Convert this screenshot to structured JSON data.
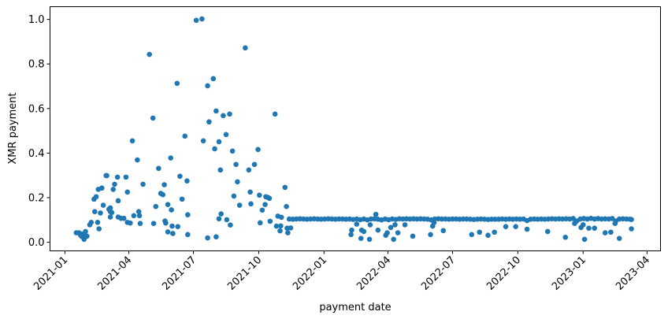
{
  "chart_data": {
    "type": "scatter",
    "title": "",
    "xlabel": "payment date",
    "ylabel": "XMR payment",
    "xlim": [
      "2020-12-11",
      "2023-04-20"
    ],
    "ylim": [
      -0.039,
      1.057
    ],
    "grid": false,
    "marker_color": "#1f77b4",
    "x_ticks": [
      "2021-01",
      "2021-04",
      "2021-07",
      "2021-10",
      "2022-01",
      "2022-04",
      "2022-07",
      "2022-10",
      "2023-01",
      "2023-04"
    ],
    "y_ticks": [
      "0.0",
      "0.2",
      "0.4",
      "0.6",
      "0.8",
      "1.0"
    ],
    "points": [
      [
        "2021-01-17",
        0.042
      ],
      [
        "2021-01-21",
        0.042
      ],
      [
        "2021-01-25",
        0.036
      ],
      [
        "2021-01-28",
        0.036
      ],
      [
        "2021-01-30",
        0.048
      ],
      [
        "2021-02-01",
        0.027
      ],
      [
        "2021-01-28",
        0.013
      ],
      [
        "2021-01-25",
        0.025
      ],
      [
        "2021-01-23",
        0.031
      ],
      [
        "2021-02-05",
        0.078
      ],
      [
        "2021-02-07",
        0.089
      ],
      [
        "2021-02-16",
        0.089
      ],
      [
        "2021-02-18",
        0.06
      ],
      [
        "2021-02-12",
        0.137
      ],
      [
        "2021-02-20",
        0.131
      ],
      [
        "2021-02-11",
        0.193
      ],
      [
        "2021-02-14",
        0.204
      ],
      [
        "2021-02-17",
        0.237
      ],
      [
        "2021-02-22",
        0.243
      ],
      [
        "2021-02-24",
        0.166
      ],
      [
        "2021-02-28",
        0.299
      ],
      [
        "2021-03-01",
        0.299
      ],
      [
        "2021-03-04",
        0.148
      ],
      [
        "2021-03-06",
        0.137
      ],
      [
        "2021-03-06",
        0.113
      ],
      [
        "2021-03-08",
        0.133
      ],
      [
        "2021-03-06",
        0.154
      ],
      [
        "2021-03-10",
        0.237
      ],
      [
        "2021-03-12",
        0.26
      ],
      [
        "2021-03-16",
        0.292
      ],
      [
        "2021-03-17",
        0.186
      ],
      [
        "2021-03-17",
        0.113
      ],
      [
        "2021-03-21",
        0.107
      ],
      [
        "2021-03-25",
        0.107
      ],
      [
        "2021-03-28",
        0.292
      ],
      [
        "2021-03-30",
        0.225
      ],
      [
        "2021-03-30",
        0.089
      ],
      [
        "2021-04-03",
        0.086
      ],
      [
        "2021-04-08",
        0.119
      ],
      [
        "2021-04-15",
        0.137
      ],
      [
        "2021-04-16",
        0.119
      ],
      [
        "2021-04-17",
        0.084
      ],
      [
        "2021-04-13",
        0.369
      ],
      [
        "2021-04-06",
        0.455
      ],
      [
        "2021-04-21",
        0.26
      ],
      [
        "2021-05-06",
        0.084
      ],
      [
        "2021-05-09",
        0.16
      ],
      [
        "2021-05-13",
        0.331
      ],
      [
        "2021-05-16",
        0.219
      ],
      [
        "2021-05-19",
        0.213
      ],
      [
        "2021-05-21",
        0.258
      ],
      [
        "2021-05-22",
        0.095
      ],
      [
        "2021-05-23",
        0.086
      ],
      [
        "2021-05-26",
        0.169
      ],
      [
        "2021-05-26",
        0.046
      ],
      [
        "2021-05-30",
        0.378
      ],
      [
        "2021-05-31",
        0.145
      ],
      [
        "2021-06-01",
        0.072
      ],
      [
        "2021-06-02",
        0.039
      ],
      [
        "2021-06-08",
        0.713
      ],
      [
        "2021-06-09",
        0.07
      ],
      [
        "2021-06-12",
        0.296
      ],
      [
        "2021-06-15",
        0.193
      ],
      [
        "2021-06-19",
        0.476
      ],
      [
        "2021-06-22",
        0.275
      ],
      [
        "2021-06-23",
        0.123
      ],
      [
        "2021-06-23",
        0.034
      ],
      [
        "2021-04-30",
        0.843
      ],
      [
        "2021-05-05",
        0.557
      ],
      [
        "2021-07-05",
        0.996
      ],
      [
        "2021-07-13",
        1.002
      ],
      [
        "2021-07-15",
        0.455
      ],
      [
        "2021-09-12",
        0.872
      ],
      [
        "2021-07-21",
        0.702
      ],
      [
        "2021-07-29",
        0.734
      ],
      [
        "2021-08-02",
        0.589
      ],
      [
        "2021-08-12",
        0.568
      ],
      [
        "2021-08-21",
        0.575
      ],
      [
        "2021-07-23",
        0.54
      ],
      [
        "2021-10-24",
        0.575
      ],
      [
        "2021-08-06",
        0.451
      ],
      [
        "2021-08-16",
        0.483
      ],
      [
        "2021-07-31",
        0.419
      ],
      [
        "2021-08-25",
        0.409
      ],
      [
        "2021-09-30",
        0.416
      ],
      [
        "2021-08-30",
        0.349
      ],
      [
        "2021-09-25",
        0.349
      ],
      [
        "2021-08-08",
        0.324
      ],
      [
        "2021-09-17",
        0.324
      ],
      [
        "2021-09-01",
        0.271
      ],
      [
        "2021-11-07",
        0.246
      ],
      [
        "2021-08-27",
        0.207
      ],
      [
        "2021-09-19",
        0.225
      ],
      [
        "2021-10-02",
        0.211
      ],
      [
        "2021-10-11",
        0.204
      ],
      [
        "2021-10-14",
        0.201
      ],
      [
        "2021-10-16",
        0.197
      ],
      [
        "2021-09-04",
        0.166
      ],
      [
        "2021-09-20",
        0.172
      ],
      [
        "2021-10-10",
        0.169
      ],
      [
        "2021-11-09",
        0.16
      ],
      [
        "2021-10-06",
        0.144
      ],
      [
        "2021-08-09",
        0.127
      ],
      [
        "2021-08-06",
        0.105
      ],
      [
        "2021-08-17",
        0.101
      ],
      [
        "2021-08-22",
        0.077
      ],
      [
        "2021-10-17",
        0.094
      ],
      [
        "2021-10-03",
        0.087
      ],
      [
        "2021-10-28",
        0.117
      ],
      [
        "2021-11-02",
        0.112
      ],
      [
        "2021-10-26",
        0.072
      ],
      [
        "2021-11-01",
        0.073
      ],
      [
        "2021-10-31",
        0.051
      ],
      [
        "2021-11-10",
        0.063
      ],
      [
        "2021-11-15",
        0.064
      ],
      [
        "2021-11-11",
        0.042
      ],
      [
        "2021-07-21",
        0.019
      ],
      [
        "2021-08-02",
        0.024
      ],
      [
        "2021-11-13",
        0.104
      ],
      [
        "2021-11-18",
        0.103
      ],
      [
        "2021-11-23",
        0.104
      ],
      [
        "2021-11-28",
        0.105
      ],
      [
        "2021-12-03",
        0.104
      ],
      [
        "2021-12-08",
        0.103
      ],
      [
        "2021-12-13",
        0.104
      ],
      [
        "2021-12-18",
        0.105
      ],
      [
        "2021-12-23",
        0.104
      ],
      [
        "2021-12-28",
        0.103
      ],
      [
        "2022-01-02",
        0.104
      ],
      [
        "2022-01-07",
        0.105
      ],
      [
        "2022-01-12",
        0.104
      ],
      [
        "2022-01-17",
        0.103
      ],
      [
        "2022-01-22",
        0.104
      ],
      [
        "2022-01-27",
        0.104
      ],
      [
        "2022-02-01",
        0.103
      ],
      [
        "2022-02-06",
        0.104
      ],
      [
        "2022-02-11",
        0.102
      ],
      [
        "2022-02-16",
        0.104
      ],
      [
        "2022-02-21",
        0.101
      ],
      [
        "2022-02-26",
        0.104
      ],
      [
        "2022-03-03",
        0.1
      ],
      [
        "2022-03-08",
        0.104
      ],
      [
        "2022-03-13",
        0.105
      ],
      [
        "2022-03-18",
        0.103
      ],
      [
        "2022-03-23",
        0.1
      ],
      [
        "2022-03-28",
        0.104
      ],
      [
        "2022-04-02",
        0.101
      ],
      [
        "2022-04-07",
        0.104
      ],
      [
        "2022-04-12",
        0.102
      ],
      [
        "2022-04-17",
        0.105
      ],
      [
        "2022-04-22",
        0.104
      ],
      [
        "2022-04-27",
        0.105
      ],
      [
        "2022-05-02",
        0.104
      ],
      [
        "2022-05-07",
        0.105
      ],
      [
        "2022-05-12",
        0.104
      ],
      [
        "2022-05-17",
        0.105
      ],
      [
        "2022-05-22",
        0.104
      ],
      [
        "2022-05-27",
        0.103
      ],
      [
        "2022-06-01",
        0.1
      ],
      [
        "2022-06-06",
        0.104
      ],
      [
        "2022-06-11",
        0.105
      ],
      [
        "2022-06-16",
        0.104
      ],
      [
        "2022-06-21",
        0.104
      ],
      [
        "2022-06-26",
        0.103
      ],
      [
        "2022-07-01",
        0.104
      ],
      [
        "2022-07-06",
        0.104
      ],
      [
        "2022-07-11",
        0.103
      ],
      [
        "2022-07-16",
        0.104
      ],
      [
        "2022-07-21",
        0.104
      ],
      [
        "2022-07-26",
        0.103
      ],
      [
        "2022-07-31",
        0.102
      ],
      [
        "2022-08-05",
        0.103
      ],
      [
        "2022-08-10",
        0.104
      ],
      [
        "2022-08-15",
        0.103
      ],
      [
        "2022-08-20",
        0.102
      ],
      [
        "2022-08-25",
        0.103
      ],
      [
        "2022-08-30",
        0.103
      ],
      [
        "2022-09-04",
        0.103
      ],
      [
        "2022-09-09",
        0.104
      ],
      [
        "2022-09-14",
        0.103
      ],
      [
        "2022-09-19",
        0.104
      ],
      [
        "2022-09-24",
        0.103
      ],
      [
        "2022-09-29",
        0.104
      ],
      [
        "2022-10-04",
        0.103
      ],
      [
        "2022-10-09",
        0.104
      ],
      [
        "2022-10-14",
        0.097
      ],
      [
        "2022-10-19",
        0.103
      ],
      [
        "2022-10-24",
        0.104
      ],
      [
        "2022-10-29",
        0.103
      ],
      [
        "2022-11-03",
        0.104
      ],
      [
        "2022-11-08",
        0.103
      ],
      [
        "2022-11-13",
        0.104
      ],
      [
        "2022-11-18",
        0.105
      ],
      [
        "2022-11-23",
        0.104
      ],
      [
        "2022-11-28",
        0.105
      ],
      [
        "2022-12-03",
        0.104
      ],
      [
        "2022-12-08",
        0.105
      ],
      [
        "2022-12-13",
        0.104
      ],
      [
        "2022-12-18",
        0.106
      ],
      [
        "2022-12-23",
        0.095
      ],
      [
        "2022-12-28",
        0.104
      ],
      [
        "2023-01-02",
        0.106
      ],
      [
        "2023-01-07",
        0.104
      ],
      [
        "2023-01-12",
        0.107
      ],
      [
        "2023-01-17",
        0.104
      ],
      [
        "2023-01-22",
        0.106
      ],
      [
        "2023-01-27",
        0.104
      ],
      [
        "2023-02-01",
        0.105
      ],
      [
        "2023-02-06",
        0.104
      ],
      [
        "2023-02-11",
        0.106
      ],
      [
        "2023-02-16",
        0.095
      ],
      [
        "2023-02-21",
        0.104
      ],
      [
        "2023-02-26",
        0.105
      ],
      [
        "2023-03-03",
        0.104
      ],
      [
        "2023-03-08",
        0.103
      ],
      [
        "2023-03-10",
        0.102
      ],
      [
        "2022-02-09",
        0.054
      ],
      [
        "2022-02-08",
        0.034
      ],
      [
        "2022-02-22",
        0.017
      ],
      [
        "2022-03-06",
        0.013
      ],
      [
        "2022-02-23",
        0.054
      ],
      [
        "2022-02-26",
        0.048
      ],
      [
        "2022-02-16",
        0.081
      ],
      [
        "2022-03-15",
        0.125
      ],
      [
        "2022-03-18",
        0.054
      ],
      [
        "2022-03-07",
        0.078
      ],
      [
        "2022-03-29",
        0.031
      ],
      [
        "2022-03-31",
        0.042
      ],
      [
        "2022-04-09",
        0.013
      ],
      [
        "2022-04-15",
        0.042
      ],
      [
        "2022-04-05",
        0.066
      ],
      [
        "2022-04-11",
        0.078
      ],
      [
        "2022-04-25",
        0.078
      ],
      [
        "2022-05-06",
        0.027
      ],
      [
        "2022-05-31",
        0.034
      ],
      [
        "2022-06-03",
        0.072
      ],
      [
        "2022-06-05",
        0.088
      ],
      [
        "2022-06-18",
        0.052
      ],
      [
        "2022-07-28",
        0.034
      ],
      [
        "2022-08-08",
        0.045
      ],
      [
        "2022-08-20",
        0.031
      ],
      [
        "2022-08-29",
        0.045
      ],
      [
        "2022-09-14",
        0.07
      ],
      [
        "2022-09-28",
        0.07
      ],
      [
        "2022-10-14",
        0.058
      ],
      [
        "2022-11-12",
        0.048
      ],
      [
        "2022-12-07",
        0.022
      ],
      [
        "2023-01-03",
        0.013
      ],
      [
        "2022-12-20",
        0.084
      ],
      [
        "2022-12-29",
        0.066
      ],
      [
        "2023-01-09",
        0.063
      ],
      [
        "2023-01-17",
        0.063
      ],
      [
        "2023-02-01",
        0.042
      ],
      [
        "2023-02-09",
        0.045
      ],
      [
        "2023-02-21",
        0.017
      ],
      [
        "2023-02-15",
        0.084
      ],
      [
        "2023-03-10",
        0.06
      ],
      [
        "2023-01-01",
        0.078
      ]
    ]
  }
}
